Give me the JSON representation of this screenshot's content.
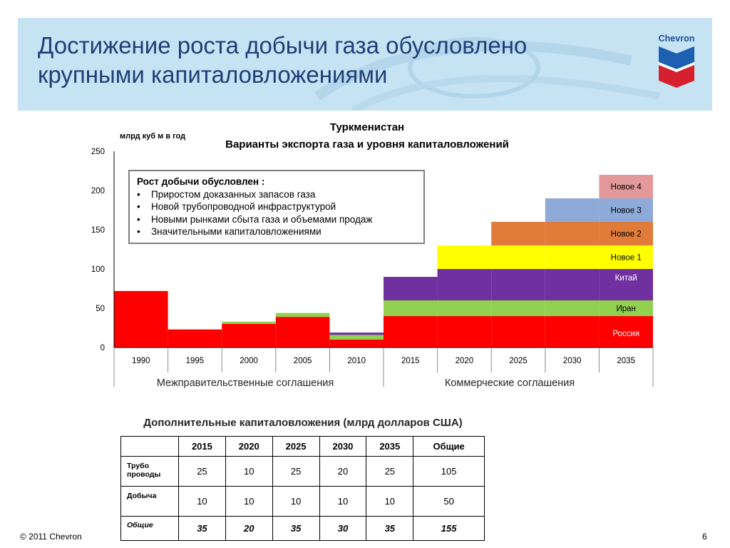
{
  "slide": {
    "title": "Достижение роста добычи газа обусловлено\nкрупными капиталовложениями",
    "logo_text": "Chevron",
    "footer": "© 2011 Chevron",
    "page_number": "6"
  },
  "chart_data": {
    "type": "area",
    "title": "Туркменистан",
    "subtitle": "Варианты экспорта газа и уровня капиталовложений",
    "ylabel": "млрд куб м в год",
    "ylim": [
      0,
      250
    ],
    "yticks": [
      0,
      50,
      100,
      150,
      200,
      250
    ],
    "categories": [
      "1990",
      "1995",
      "2000",
      "2005",
      "2010",
      "2015",
      "2020",
      "2025",
      "2030",
      "2035"
    ],
    "series": [
      {
        "name": "Россия",
        "color": "#ff0000",
        "values": [
          72,
          23,
          30,
          39,
          10,
          40,
          40,
          40,
          40,
          40
        ]
      },
      {
        "name": "Иран",
        "color": "#92d050",
        "values": [
          0,
          0,
          3,
          5,
          6,
          20,
          20,
          20,
          20,
          20
        ]
      },
      {
        "name": "Китай",
        "color": "#7030a0",
        "values": [
          0,
          0,
          0,
          0,
          3,
          30,
          40,
          40,
          40,
          40
        ]
      },
      {
        "name": "Новое 1",
        "color": "#ffff00",
        "values": [
          0,
          0,
          0,
          0,
          0,
          0,
          30,
          30,
          30,
          30
        ]
      },
      {
        "name": "Новое 2",
        "color": "#e07b39",
        "values": [
          0,
          0,
          0,
          0,
          0,
          0,
          0,
          30,
          30,
          30
        ]
      },
      {
        "name": "Новое 3",
        "color": "#8eaad8",
        "values": [
          0,
          0,
          0,
          0,
          0,
          0,
          0,
          0,
          30,
          30
        ]
      },
      {
        "name": "Новое 4",
        "color": "#e3999a",
        "values": [
          0,
          0,
          0,
          0,
          0,
          0,
          0,
          0,
          0,
          30
        ]
      }
    ],
    "periods": [
      "Межправительственные соглашения",
      "Коммерческие соглашения"
    ],
    "annotation": {
      "title": "Рост добычи обусловлен :",
      "items": [
        "Приростом доказанных запасов газа",
        "Новой трубопроводной инфраструктурой",
        "Новыми рынками сбыта газа и объемами продаж",
        "Значительными капиталовложениями"
      ]
    }
  },
  "table": {
    "title": "Дополнительные капиталовложения (млрд долларов США)",
    "header": [
      "",
      "2015",
      "2020",
      "2025",
      "2030",
      "2035",
      "Общие"
    ],
    "rows": [
      {
        "label": "Трубо\nпроводы",
        "cells": [
          "25",
          "10",
          "25",
          "20",
          "25",
          "105"
        ]
      },
      {
        "label": "Добыча",
        "cells": [
          "10",
          "10",
          "10",
          "10",
          "10",
          "50"
        ]
      },
      {
        "label": "Общие",
        "cells": [
          "35",
          "20",
          "35",
          "30",
          "35",
          "155"
        ]
      }
    ]
  }
}
